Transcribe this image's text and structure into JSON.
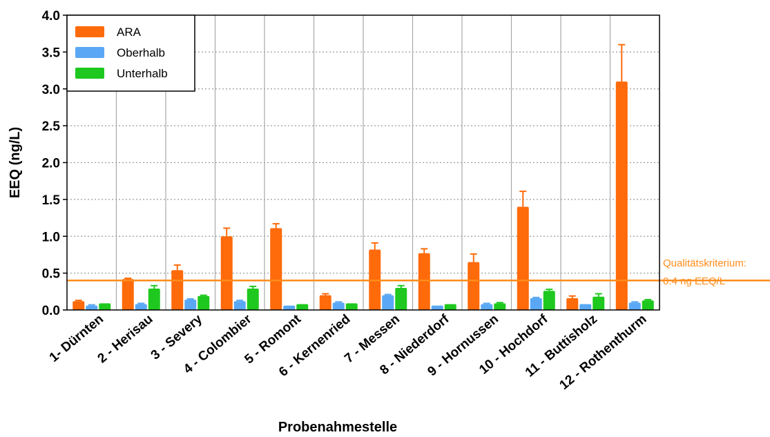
{
  "chart_data": {
    "type": "bar",
    "title": "",
    "xlabel": "Probenahmestelle",
    "ylabel": "EEQ (ng/L)",
    "ylim": [
      0,
      4.0
    ],
    "yticks": [
      "0.0",
      "0.5",
      "1.0",
      "1.5",
      "2.0",
      "2.5",
      "3.0",
      "3.5",
      "4.0"
    ],
    "grid": "horizontal dotted + vertical solid separators",
    "legend_position": "top-left",
    "categories": [
      "1- Dürnten",
      "2 - Herisau",
      "3 - Severy",
      "4 - Colombier",
      "5 - Romont",
      "6 - Kernenried",
      "7 - Messen",
      "8 - Niederdorf",
      "9 - Hornussen",
      "10 - Hochdorf",
      "11 - Buttisholz",
      "12 - Rothenthurm"
    ],
    "series": [
      {
        "name": "ARA",
        "color": "#ff6a0a",
        "values": [
          0.12,
          0.42,
          0.54,
          1.0,
          1.11,
          0.2,
          0.82,
          0.77,
          0.65,
          1.4,
          0.16,
          3.1
        ],
        "errors": [
          0.01,
          0.01,
          0.07,
          0.11,
          0.06,
          0.02,
          0.09,
          0.06,
          0.11,
          0.21,
          0.03,
          0.5
        ]
      },
      {
        "name": "Oberhalb",
        "color": "#5aa8f5",
        "values": [
          0.06,
          0.08,
          0.14,
          0.12,
          0.06,
          0.1,
          0.2,
          0.06,
          0.08,
          0.16,
          0.08,
          0.1
        ],
        "errors": [
          0.01,
          0.01,
          0.01,
          0.01,
          0.0,
          0.01,
          0.01,
          0.0,
          0.01,
          0.01,
          0.0,
          0.01
        ]
      },
      {
        "name": "Unterhalb",
        "color": "#1ec81e",
        "values": [
          0.09,
          0.29,
          0.19,
          0.29,
          0.08,
          0.09,
          0.3,
          0.08,
          0.09,
          0.26,
          0.18,
          0.13
        ],
        "errors": [
          0.0,
          0.04,
          0.01,
          0.03,
          0.0,
          0.0,
          0.03,
          0.0,
          0.01,
          0.02,
          0.04,
          0.01
        ]
      }
    ],
    "reference_line": {
      "value": 0.4,
      "color": "#ff8c1a",
      "label_line1": "Qualitätskriterium:",
      "label_line2": "0.4 ng EEQ/L"
    }
  }
}
